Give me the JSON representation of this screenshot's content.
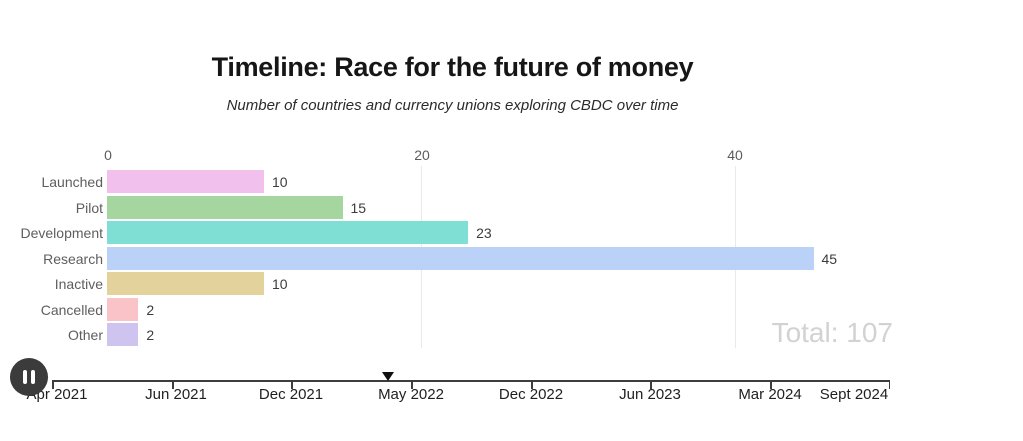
{
  "header": {
    "title": "Timeline: Race for the future of money",
    "subtitle": "Number of countries and currency unions exploring CBDC over time"
  },
  "chart_data": {
    "type": "bar",
    "orientation": "horizontal",
    "title": "Timeline: Race for the future of money",
    "subtitle": "Number of countries and currency unions exploring CBDC over time",
    "categories": [
      "Launched",
      "Pilot",
      "Development",
      "Research",
      "Inactive",
      "Cancelled",
      "Other"
    ],
    "values": [
      10,
      15,
      23,
      45,
      10,
      2,
      2
    ],
    "bar_colors": [
      "#f2c0ec",
      "#a6d6a0",
      "#7fdfd4",
      "#bad2f7",
      "#e3d29c",
      "#fac3c7",
      "#cfc3f0"
    ],
    "x_ticks": [
      0,
      20,
      40
    ],
    "xlim": [
      0,
      51
    ],
    "grid": "vertical-light",
    "legend": "none",
    "total_label": "Total: 107"
  },
  "timeline": {
    "control": "pause-icon",
    "dates": [
      "Apr 2021",
      "Jun 2021",
      "Dec 2021",
      "May 2022",
      "Dec 2022",
      "Jun 2023",
      "Mar 2024",
      "Sept 2024"
    ]
  },
  "colors": {
    "background": "#ffffff",
    "gridline": "#e9e9e9",
    "axis_text": "#5c5c5c",
    "category_text": "#5e5e5e",
    "value_text": "#3c3c3c",
    "total_text": "#d2d2d2",
    "timeline_line": "#3d3d3d",
    "play_button": "#3b3b3b"
  }
}
